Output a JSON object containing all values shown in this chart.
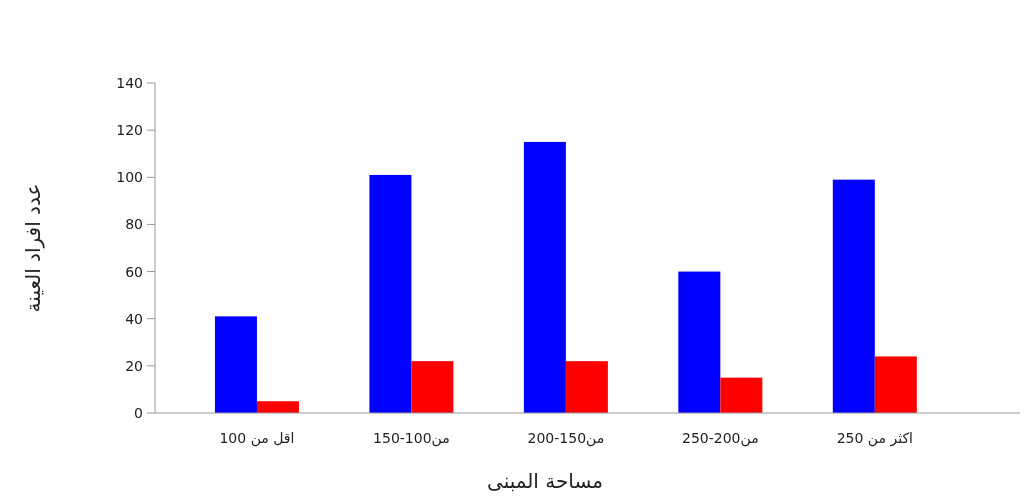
{
  "chart_data": {
    "type": "bar",
    "xlabel": "مساحة المبنى",
    "ylabel": "عدد افراد العينة",
    "categories": [
      "اقل من 100",
      "من100-150",
      "من150-200",
      "من200-250",
      "اكثر من 250"
    ],
    "series": [
      {
        "color": "#0000ff",
        "values": [
          41,
          101,
          115,
          60,
          99
        ]
      },
      {
        "color": "#ff0000",
        "values": [
          5,
          22,
          22,
          15,
          24
        ]
      }
    ],
    "ylim": [
      0,
      140
    ],
    "yticks": [
      0,
      20,
      40,
      60,
      80,
      100,
      120,
      140
    ],
    "grid": false
  }
}
